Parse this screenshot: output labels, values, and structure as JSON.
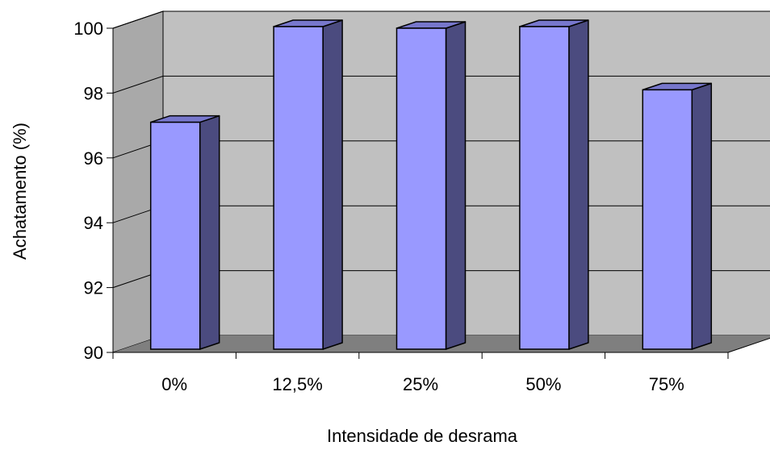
{
  "chart_data": {
    "type": "bar",
    "title": "",
    "xlabel": "Intensidade de desrama",
    "ylabel": "Achatamento (%)",
    "categories": [
      "0%",
      "12,5%",
      "25%",
      "50%",
      "75%"
    ],
    "values": [
      97.1,
      100.05,
      100.0,
      100.05,
      98.1
    ],
    "ylim": [
      90,
      100
    ],
    "yticks": [
      "90",
      "92",
      "94",
      "96",
      "98",
      "100"
    ],
    "ytick_values": [
      90,
      92,
      94,
      96,
      98,
      100
    ],
    "grid": true,
    "legend": "none",
    "style": "3d",
    "colors": {
      "bar_front": "#9999ff",
      "bar_side": "#4b4b7f",
      "bar_top": "#7777cc",
      "back_wall": "#c0c0c0",
      "side_wall": "#a9a9a9",
      "floor": "#7f7f7f"
    }
  }
}
